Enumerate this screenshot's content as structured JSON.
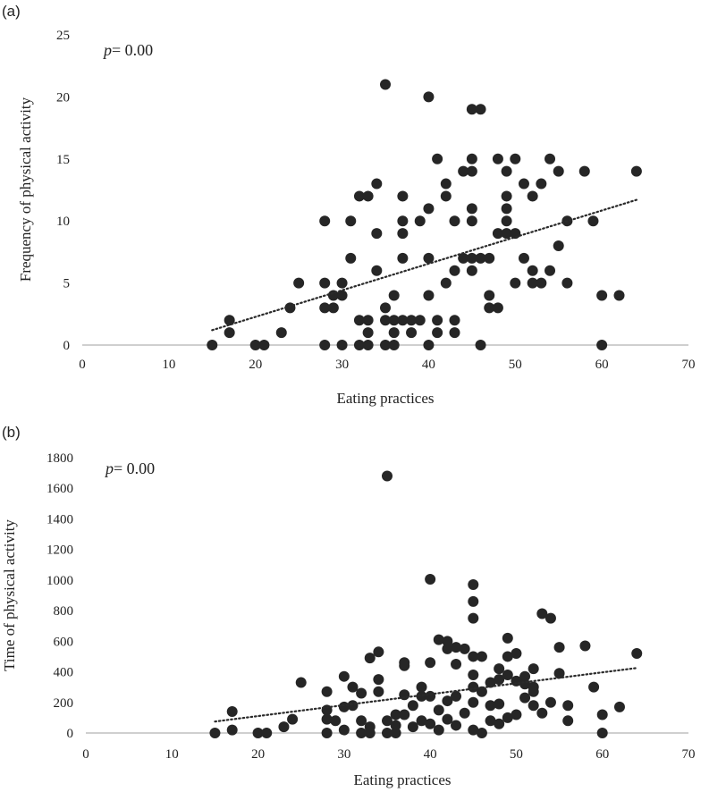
{
  "chart_data": [
    {
      "type": "scatter",
      "panel_label": "(a)",
      "annotation_prefix": "p",
      "annotation_value": "= 0.00",
      "xlabel": "Eating practices",
      "ylabel": "Frequency of physical activity",
      "xlim": [
        0,
        70
      ],
      "ylim": [
        0,
        25
      ],
      "xticks": [
        0,
        10,
        20,
        30,
        40,
        50,
        60,
        70
      ],
      "yticks": [
        0,
        5,
        10,
        15,
        20,
        25
      ],
      "trendline": {
        "x": [
          15,
          64
        ],
        "y": [
          1.2,
          11.7
        ],
        "style": "dotted"
      },
      "marker_color": "#262626",
      "points": [
        [
          15,
          0
        ],
        [
          17,
          2
        ],
        [
          17,
          1
        ],
        [
          20,
          0
        ],
        [
          21,
          0
        ],
        [
          23,
          1
        ],
        [
          24,
          3
        ],
        [
          25,
          5
        ],
        [
          28,
          10
        ],
        [
          28,
          5
        ],
        [
          28,
          3
        ],
        [
          28,
          0
        ],
        [
          29,
          4
        ],
        [
          29,
          3
        ],
        [
          30,
          5
        ],
        [
          30,
          4
        ],
        [
          30,
          0
        ],
        [
          31,
          10
        ],
        [
          31,
          7
        ],
        [
          32,
          12
        ],
        [
          32,
          2
        ],
        [
          32,
          0
        ],
        [
          33,
          12
        ],
        [
          33,
          2
        ],
        [
          33,
          1
        ],
        [
          33,
          0
        ],
        [
          34,
          13
        ],
        [
          34,
          9
        ],
        [
          34,
          6
        ],
        [
          35,
          3
        ],
        [
          35,
          21
        ],
        [
          35,
          2
        ],
        [
          35,
          0
        ],
        [
          36,
          4
        ],
        [
          36,
          2
        ],
        [
          36,
          1
        ],
        [
          36,
          0
        ],
        [
          37,
          12
        ],
        [
          37,
          10
        ],
        [
          37,
          9
        ],
        [
          37,
          7
        ],
        [
          37,
          2
        ],
        [
          38,
          2
        ],
        [
          38,
          1
        ],
        [
          39,
          10
        ],
        [
          39,
          2
        ],
        [
          40,
          20
        ],
        [
          40,
          11
        ],
        [
          40,
          7
        ],
        [
          40,
          4
        ],
        [
          40,
          0
        ],
        [
          41,
          15
        ],
        [
          41,
          2
        ],
        [
          41,
          1
        ],
        [
          42,
          12
        ],
        [
          42,
          13
        ],
        [
          42,
          5
        ],
        [
          43,
          10
        ],
        [
          43,
          6
        ],
        [
          43,
          2
        ],
        [
          43,
          1
        ],
        [
          44,
          14
        ],
        [
          44,
          7
        ],
        [
          45,
          19
        ],
        [
          45,
          15
        ],
        [
          45,
          14
        ],
        [
          45,
          11
        ],
        [
          45,
          10
        ],
        [
          45,
          7
        ],
        [
          45,
          6
        ],
        [
          46,
          19
        ],
        [
          46,
          7
        ],
        [
          46,
          0
        ],
        [
          47,
          7
        ],
        [
          47,
          4
        ],
        [
          47,
          3
        ],
        [
          48,
          15
        ],
        [
          48,
          9
        ],
        [
          48,
          3
        ],
        [
          49,
          14
        ],
        [
          49,
          12
        ],
        [
          49,
          11
        ],
        [
          49,
          10
        ],
        [
          49,
          9
        ],
        [
          50,
          15
        ],
        [
          50,
          9
        ],
        [
          50,
          5
        ],
        [
          51,
          13
        ],
        [
          51,
          7
        ],
        [
          52,
          12
        ],
        [
          52,
          6
        ],
        [
          52,
          5
        ],
        [
          53,
          13
        ],
        [
          53,
          5
        ],
        [
          54,
          15
        ],
        [
          54,
          6
        ],
        [
          55,
          14
        ],
        [
          55,
          8
        ],
        [
          56,
          10
        ],
        [
          56,
          5
        ],
        [
          58,
          14
        ],
        [
          59,
          10
        ],
        [
          60,
          4
        ],
        [
          60,
          0
        ],
        [
          62,
          4
        ],
        [
          64,
          14
        ]
      ]
    },
    {
      "type": "scatter",
      "panel_label": "(b)",
      "annotation_prefix": "p",
      "annotation_value": "= 0.00",
      "xlabel": "Eating practices",
      "ylabel": "Time of physical activity",
      "xlim": [
        0,
        70
      ],
      "ylim": [
        0,
        1800
      ],
      "xticks": [
        0,
        10,
        20,
        30,
        40,
        50,
        60,
        70
      ],
      "yticks": [
        0,
        200,
        400,
        600,
        800,
        1000,
        1200,
        1400,
        1600,
        1800
      ],
      "trendline": {
        "x": [
          15,
          64
        ],
        "y": [
          75,
          425
        ],
        "style": "dotted"
      },
      "marker_color": "#262626",
      "points": [
        [
          15,
          0
        ],
        [
          17,
          140
        ],
        [
          17,
          20
        ],
        [
          20,
          0
        ],
        [
          21,
          0
        ],
        [
          23,
          40
        ],
        [
          24,
          90
        ],
        [
          25,
          330
        ],
        [
          28,
          270
        ],
        [
          28,
          150
        ],
        [
          28,
          90
        ],
        [
          28,
          0
        ],
        [
          29,
          80
        ],
        [
          30,
          370
        ],
        [
          30,
          170
        ],
        [
          30,
          20
        ],
        [
          31,
          300
        ],
        [
          31,
          180
        ],
        [
          32,
          260
        ],
        [
          32,
          80
        ],
        [
          32,
          0
        ],
        [
          33,
          490
        ],
        [
          33,
          40
        ],
        [
          33,
          0
        ],
        [
          34,
          530
        ],
        [
          34,
          350
        ],
        [
          34,
          270
        ],
        [
          35,
          1680
        ],
        [
          35,
          80
        ],
        [
          35,
          0
        ],
        [
          36,
          120
        ],
        [
          36,
          50
        ],
        [
          36,
          0
        ],
        [
          37,
          460
        ],
        [
          37,
          440
        ],
        [
          37,
          250
        ],
        [
          37,
          120
        ],
        [
          38,
          180
        ],
        [
          38,
          40
        ],
        [
          39,
          300
        ],
        [
          39,
          240
        ],
        [
          39,
          80
        ],
        [
          40,
          1005
        ],
        [
          40,
          460
        ],
        [
          40,
          240
        ],
        [
          40,
          60
        ],
        [
          41,
          610
        ],
        [
          41,
          150
        ],
        [
          41,
          20
        ],
        [
          42,
          600
        ],
        [
          42,
          550
        ],
        [
          42,
          210
        ],
        [
          42,
          90
        ],
        [
          43,
          560
        ],
        [
          43,
          450
        ],
        [
          43,
          240
        ],
        [
          43,
          50
        ],
        [
          44,
          550
        ],
        [
          44,
          130
        ],
        [
          45,
          970
        ],
        [
          45,
          860
        ],
        [
          45,
          750
        ],
        [
          45,
          500
        ],
        [
          45,
          380
        ],
        [
          45,
          300
        ],
        [
          45,
          200
        ],
        [
          45,
          20
        ],
        [
          46,
          500
        ],
        [
          46,
          270
        ],
        [
          46,
          0
        ],
        [
          47,
          330
        ],
        [
          47,
          180
        ],
        [
          47,
          80
        ],
        [
          48,
          420
        ],
        [
          48,
          350
        ],
        [
          48,
          190
        ],
        [
          48,
          60
        ],
        [
          49,
          620
        ],
        [
          49,
          500
        ],
        [
          49,
          380
        ],
        [
          49,
          100
        ],
        [
          50,
          520
        ],
        [
          50,
          340
        ],
        [
          50,
          120
        ],
        [
          51,
          370
        ],
        [
          51,
          320
        ],
        [
          51,
          230
        ],
        [
          52,
          420
        ],
        [
          52,
          300
        ],
        [
          52,
          270
        ],
        [
          52,
          180
        ],
        [
          53,
          780
        ],
        [
          53,
          130
        ],
        [
          54,
          750
        ],
        [
          54,
          200
        ],
        [
          55,
          560
        ],
        [
          55,
          390
        ],
        [
          56,
          180
        ],
        [
          56,
          80
        ],
        [
          58,
          570
        ],
        [
          59,
          300
        ],
        [
          60,
          120
        ],
        [
          60,
          0
        ],
        [
          62,
          170
        ],
        [
          64,
          520
        ]
      ]
    }
  ]
}
